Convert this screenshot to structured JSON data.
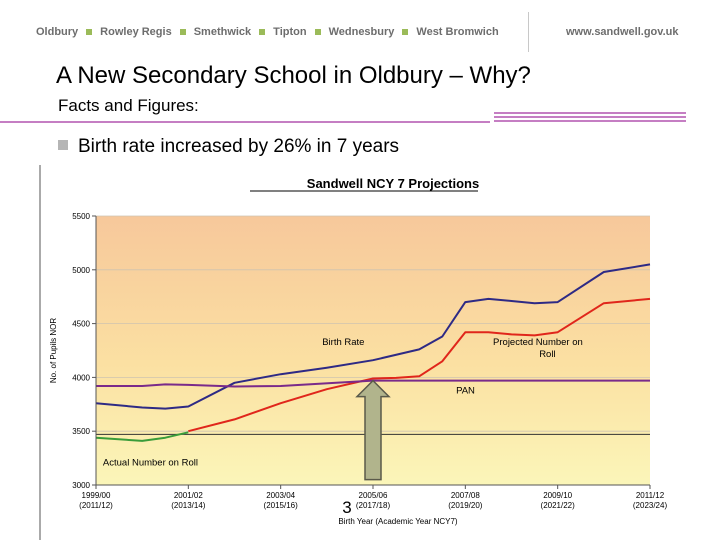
{
  "nav": {
    "towns": [
      "Oldbury",
      "Rowley Regis",
      "Smethwick",
      "Tipton",
      "Wednesbury",
      "West Bromwich"
    ],
    "url": "www.sandwell.gov.uk"
  },
  "slide": {
    "title": "A New Secondary School in Oldbury – Why?",
    "subtitle": "Facts and Figures:",
    "bullet": "Birth rate increased by 26% in 7 years",
    "page_number": "3"
  },
  "colors": {
    "accent": "#c57ec3",
    "bullet": "#b5b5b5",
    "nav_square": "#9bbb59",
    "text": "#000000"
  },
  "chart_data": {
    "type": "line",
    "title": "Sandwell NCY 7 Projections",
    "xlabel": "Birth Year (Academic Year NCY7)",
    "ylabel": "No. of Pupils NOR",
    "ylim": [
      3000,
      5500
    ],
    "yticks": [
      3000,
      3500,
      4000,
      4500,
      5000,
      5500
    ],
    "x_ticks": [
      {
        "x": 0,
        "line1": "1999/00",
        "line2": "(2011/12)"
      },
      {
        "x": 2,
        "line1": "2001/02",
        "line2": "(2013/14)"
      },
      {
        "x": 4,
        "line1": "2003/04",
        "line2": "(2015/16)"
      },
      {
        "x": 6,
        "line1": "2005/06",
        "line2": "(2017/18)"
      },
      {
        "x": 8,
        "line1": "2007/08",
        "line2": "(2019/20)"
      },
      {
        "x": 10,
        "line1": "2009/10",
        "line2": "(2021/22)"
      },
      {
        "x": 12,
        "line1": "2011/12",
        "line2": "(2023/24)"
      }
    ],
    "xlim": [
      0,
      12
    ],
    "series": [
      {
        "name": "Birth Rate",
        "color": "#2e2a85",
        "x": [
          0,
          1,
          1.5,
          2,
          3,
          4,
          5,
          6,
          7,
          7.5,
          8,
          8.5,
          9,
          9.5,
          10,
          11,
          12
        ],
        "values": [
          3760,
          3720,
          3710,
          3730,
          3950,
          4030,
          4090,
          4160,
          4260,
          4380,
          4700,
          4730,
          4710,
          4690,
          4700,
          4980,
          5050
        ]
      },
      {
        "name": "Projected Number on Roll",
        "color": "#e0261b",
        "x": [
          2,
          3,
          4,
          5,
          6,
          6.5,
          7,
          7.5,
          8,
          8.5,
          9,
          9.5,
          10,
          11,
          12
        ],
        "values": [
          3500,
          3610,
          3760,
          3890,
          3990,
          3995,
          4010,
          4150,
          4420,
          4420,
          4400,
          4390,
          4420,
          4690,
          4730
        ]
      },
      {
        "name": "Actual Number on Roll",
        "color": "#3a9c3a",
        "x": [
          0,
          1,
          1.5,
          2
        ],
        "values": [
          3440,
          3410,
          3440,
          3490
        ]
      },
      {
        "name": "PAN",
        "color": "#7a2a8a",
        "x": [
          0,
          1,
          1.5,
          2,
          3,
          4,
          6,
          12
        ],
        "values": [
          3920,
          3920,
          3935,
          3930,
          3915,
          3920,
          3970,
          3970
        ]
      }
    ],
    "annotations": [
      {
        "text": "Birth Rate",
        "x": 4.9,
        "y": 4300
      },
      {
        "text": "Projected Number on",
        "x": 8.6,
        "y": 4300
      },
      {
        "text": "Roll",
        "x": 9.6,
        "y": 4190
      },
      {
        "text": "PAN",
        "x": 7.8,
        "y": 3850
      },
      {
        "text": "Actual Number on Roll",
        "x": 0.15,
        "y": 3180
      }
    ],
    "reference_lines": [
      {
        "y": 3470
      }
    ],
    "arrow": {
      "x": 6.0,
      "from_y": 3050,
      "to_y": 3970
    }
  }
}
